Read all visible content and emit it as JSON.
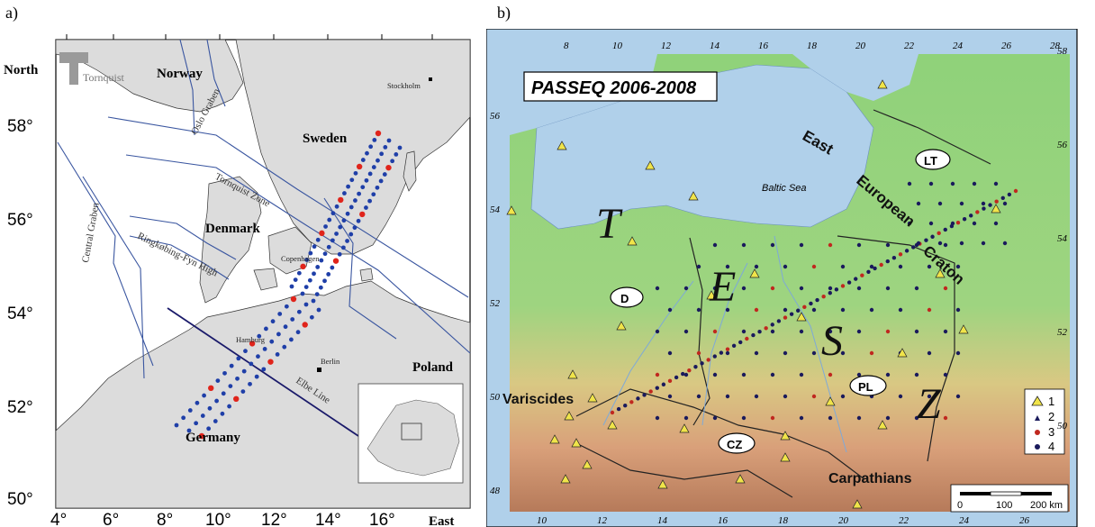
{
  "panel_a": {
    "label": "a)",
    "logo_text": "Tornquist",
    "axis": {
      "y_ticks": [
        "58°",
        "56°",
        "54°",
        "52°",
        "50°"
      ],
      "x_ticks": [
        "4°",
        "6°",
        "8°",
        "10°",
        "12°",
        "14°",
        "16°"
      ],
      "north_label": "North",
      "east_label": "East"
    },
    "countries": {
      "norway": "Norway",
      "sweden": "Sweden",
      "denmark": "Denmark",
      "germany": "Germany",
      "poland": "Poland"
    },
    "features": {
      "oslo_graben": "Oslo Graben",
      "tornquist_zone": "Tornquist Zone",
      "central_graben": "Central Graben",
      "ringkobing": "Ringkøbing-Fyn High",
      "elbe_line": "Elbe Line"
    },
    "cities": {
      "stockholm": "Stockholm",
      "copenhagen": "Copenhagen",
      "hamburg": "Hamburg",
      "berlin": "Berlin"
    },
    "colors": {
      "sea": "#ffffff",
      "land": "#dcdcdc",
      "blue_station": "#1f3fa8",
      "red_station": "#e0241b",
      "fault": "#3a56a0"
    }
  },
  "panel_b": {
    "label": "b)",
    "title": "PASSEQ 2006-2008",
    "top_ticks": [
      "8",
      "10",
      "12",
      "14",
      "16",
      "18",
      "20",
      "22",
      "24",
      "26",
      "28"
    ],
    "bottom_ticks": [
      "10",
      "12",
      "14",
      "16",
      "18",
      "20",
      "22",
      "24",
      "26"
    ],
    "left_ticks": [
      "56",
      "54",
      "52",
      "50",
      "48"
    ],
    "right_ticks": [
      "58",
      "56",
      "54",
      "52",
      "50"
    ],
    "sea_label": "Baltic Sea",
    "tesz_letters": [
      "T",
      "E",
      "S",
      "Z"
    ],
    "craton_words": [
      "East",
      "European",
      "Craton"
    ],
    "regions": {
      "variscides": "Variscides",
      "carpathians": "Carpathians"
    },
    "country_ovals": [
      "D",
      "PL",
      "CZ",
      "LT"
    ],
    "legend": [
      "1",
      "2",
      "3",
      "4"
    ],
    "scale": {
      "zero": "0",
      "mid": "100",
      "end": "200 km"
    },
    "colors": {
      "sea": "#b0d0ea",
      "lowland": "#8fd27a",
      "upland": "#e6c78a",
      "mountain": "#c9886a",
      "triangle": "#f0e44a",
      "red_station": "#c0281f",
      "blue_station": "#1a1a5c"
    }
  }
}
